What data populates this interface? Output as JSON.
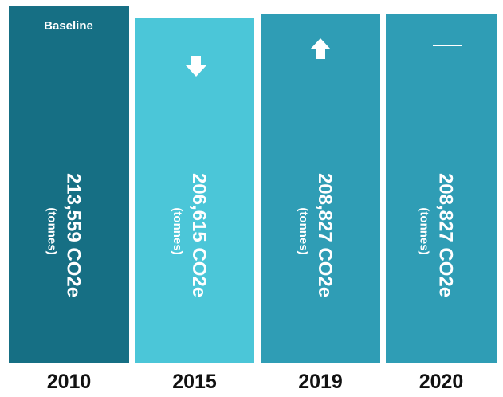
{
  "chart_data": {
    "type": "bar",
    "categories": [
      "2010",
      "2015",
      "2019",
      "2020"
    ],
    "values": [
      213559,
      206615,
      208827,
      208827
    ],
    "value_labels": [
      "213,559 CO2e",
      "206,615 CO2e",
      "208,827 CO2e",
      "208,827 CO2e"
    ],
    "unit_label": "(tonnes)",
    "annotation": "Baseline",
    "colors": [
      "#166f84",
      "#4bc6d8",
      "#2f9db5",
      "#2f9db5"
    ],
    "ylim": [
      0,
      215000
    ]
  }
}
